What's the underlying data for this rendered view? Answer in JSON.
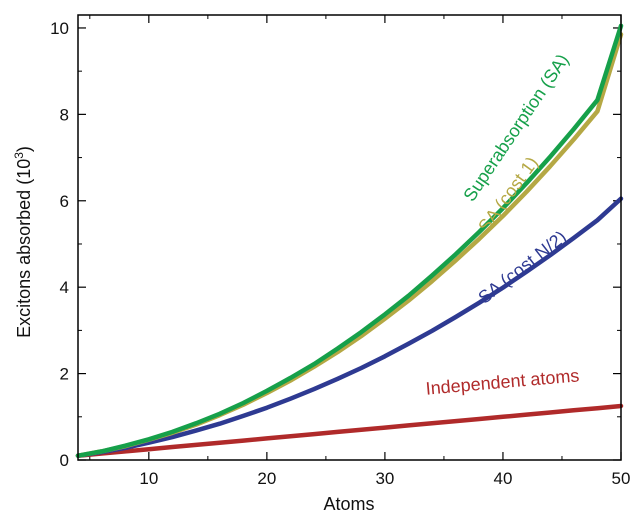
{
  "chart_data": {
    "type": "line",
    "title": "",
    "xlabel": "Atoms",
    "ylabel": "Excitons absorbed (10",
    "ylabel_sup": "3",
    "ylabel_close": ")",
    "xlim": [
      4,
      50
    ],
    "ylim": [
      0,
      10.3
    ],
    "xticks": [
      10,
      20,
      30,
      40,
      50
    ],
    "yticks": [
      0,
      2,
      4,
      6,
      8,
      10
    ],
    "grid": false,
    "legend": "none (inline series labels)",
    "x": [
      4,
      6,
      8,
      10,
      12,
      14,
      16,
      18,
      20,
      22,
      24,
      26,
      28,
      30,
      32,
      34,
      36,
      38,
      40,
      42,
      44,
      46,
      48,
      50
    ],
    "series": [
      {
        "name": "Superabsorption (SA)",
        "color": "#16a04a",
        "values": [
          0.1,
          0.2,
          0.33,
          0.48,
          0.65,
          0.85,
          1.07,
          1.32,
          1.6,
          1.9,
          2.22,
          2.58,
          2.96,
          3.37,
          3.8,
          4.27,
          4.76,
          5.28,
          5.83,
          6.41,
          7.02,
          7.66,
          8.33,
          10.05
        ]
      },
      {
        "name": "SA (cost 1)",
        "color": "#b5a844",
        "values": [
          0.1,
          0.2,
          0.32,
          0.47,
          0.63,
          0.82,
          1.04,
          1.28,
          1.55,
          1.84,
          2.16,
          2.5,
          2.87,
          3.27,
          3.69,
          4.14,
          4.62,
          5.12,
          5.65,
          6.21,
          6.8,
          7.42,
          8.07,
          9.85
        ]
      },
      {
        "name": "SA (cost N/2)",
        "color": "#2e3a92",
        "values": [
          0.1,
          0.18,
          0.28,
          0.4,
          0.53,
          0.68,
          0.84,
          1.02,
          1.21,
          1.42,
          1.64,
          1.88,
          2.13,
          2.4,
          2.69,
          2.99,
          3.31,
          3.64,
          3.99,
          4.36,
          4.74,
          5.14,
          5.55,
          6.05
        ]
      },
      {
        "name": "Independent atoms",
        "color": "#b02a2a",
        "values": [
          0.1,
          0.15,
          0.2,
          0.25,
          0.3,
          0.35,
          0.4,
          0.45,
          0.5,
          0.55,
          0.6,
          0.65,
          0.7,
          0.75,
          0.8,
          0.85,
          0.9,
          0.95,
          1.0,
          1.05,
          1.1,
          1.15,
          1.2,
          1.25
        ]
      }
    ]
  }
}
